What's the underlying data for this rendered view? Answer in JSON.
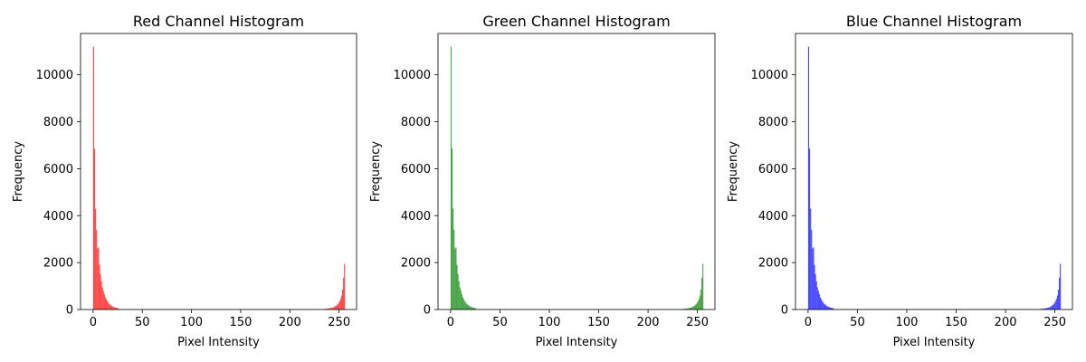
{
  "chart_data": [
    {
      "type": "bar",
      "title": "Red Channel Histogram",
      "xlabel": "Pixel Intensity",
      "ylabel": "Frequency",
      "color": "#ff0000",
      "alpha": 0.7,
      "xlim": [
        -12.75,
        267.75
      ],
      "ylim": [
        0,
        11760
      ],
      "xticks": [
        0,
        50,
        100,
        150,
        200,
        250
      ],
      "yticks": [
        0,
        2000,
        4000,
        6000,
        8000,
        10000
      ],
      "bins": {
        "0": 11200,
        "1": 6850,
        "2": 4300,
        "3": 3400,
        "4": 2600,
        "5": 2650,
        "6": 1900,
        "7": 1500,
        "8": 1200,
        "9": 950,
        "10": 800,
        "11": 650,
        "12": 520,
        "13": 430,
        "14": 350,
        "15": 290,
        "16": 240,
        "17": 200,
        "18": 170,
        "19": 140,
        "20": 115,
        "21": 100,
        "22": 85,
        "23": 75,
        "24": 65,
        "25": 55,
        "235": 25,
        "236": 30,
        "237": 35,
        "238": 40,
        "239": 45,
        "240": 55,
        "241": 60,
        "242": 70,
        "243": 80,
        "244": 100,
        "245": 120,
        "246": 150,
        "247": 180,
        "248": 220,
        "249": 280,
        "250": 350,
        "251": 450,
        "252": 600,
        "253": 850,
        "254": 1350,
        "255": 1950
      },
      "baseline": 12
    },
    {
      "type": "bar",
      "title": "Green Channel Histogram",
      "xlabel": "Pixel Intensity",
      "ylabel": "Frequency",
      "color": "#008000",
      "alpha": 0.7,
      "xlim": [
        -12.75,
        267.75
      ],
      "ylim": [
        0,
        11760
      ],
      "xticks": [
        0,
        50,
        100,
        150,
        200,
        250
      ],
      "yticks": [
        0,
        2000,
        4000,
        6000,
        8000,
        10000
      ],
      "bins": {
        "0": 11200,
        "1": 6850,
        "2": 4300,
        "3": 3400,
        "4": 2600,
        "5": 2650,
        "6": 1900,
        "7": 1500,
        "8": 1200,
        "9": 950,
        "10": 800,
        "11": 650,
        "12": 520,
        "13": 430,
        "14": 350,
        "15": 290,
        "16": 240,
        "17": 200,
        "18": 170,
        "19": 140,
        "20": 115,
        "21": 100,
        "22": 85,
        "23": 75,
        "24": 65,
        "25": 55,
        "235": 25,
        "236": 30,
        "237": 35,
        "238": 40,
        "239": 45,
        "240": 55,
        "241": 60,
        "242": 70,
        "243": 80,
        "244": 100,
        "245": 120,
        "246": 150,
        "247": 180,
        "248": 220,
        "249": 280,
        "250": 350,
        "251": 450,
        "252": 600,
        "253": 850,
        "254": 1350,
        "255": 1950
      },
      "baseline": 12
    },
    {
      "type": "bar",
      "title": "Blue Channel Histogram",
      "xlabel": "Pixel Intensity",
      "ylabel": "Frequency",
      "color": "#0000ff",
      "alpha": 0.7,
      "xlim": [
        -12.75,
        267.75
      ],
      "ylim": [
        0,
        11760
      ],
      "xticks": [
        0,
        50,
        100,
        150,
        200,
        250
      ],
      "yticks": [
        0,
        2000,
        4000,
        6000,
        8000,
        10000
      ],
      "bins": {
        "0": 11200,
        "1": 6850,
        "2": 4300,
        "3": 3400,
        "4": 2600,
        "5": 2650,
        "6": 1900,
        "7": 1500,
        "8": 1200,
        "9": 950,
        "10": 800,
        "11": 650,
        "12": 520,
        "13": 430,
        "14": 350,
        "15": 290,
        "16": 240,
        "17": 200,
        "18": 170,
        "19": 140,
        "20": 115,
        "21": 100,
        "22": 85,
        "23": 75,
        "24": 65,
        "25": 55,
        "235": 25,
        "236": 30,
        "237": 35,
        "238": 40,
        "239": 45,
        "240": 55,
        "241": 60,
        "242": 70,
        "243": 80,
        "244": 100,
        "245": 120,
        "246": 150,
        "247": 180,
        "248": 220,
        "249": 280,
        "250": 350,
        "251": 450,
        "252": 600,
        "253": 850,
        "254": 1350,
        "255": 1950
      },
      "baseline": 12
    }
  ]
}
